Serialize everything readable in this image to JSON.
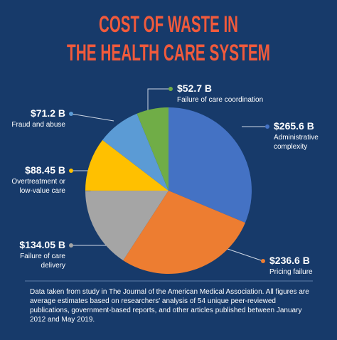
{
  "chart_data": {
    "type": "pie",
    "title": [
      "COST OF WASTE IN",
      "THE HEALTH CARE SYSTEM"
    ],
    "categories": [
      "Administrative\ncomplexity",
      "Pricing failure",
      "Failure of care\ndelivery",
      "Overtreatment or\nlow-value care",
      "Fraud and abuse",
      "Failure of care coordination"
    ],
    "values": [
      265.6,
      236.6,
      134.05,
      88.45,
      71.2,
      52.7
    ],
    "value_labels": [
      "$265.6 B",
      "$236.6 B",
      "$134.05 B",
      "$88.45 B",
      "$71.2 B",
      "$52.7 B"
    ],
    "colors": [
      "#4472c4",
      "#ed7d31",
      "#a5a5a5",
      "#ffc000",
      "#5b9bd5",
      "#70ad47"
    ],
    "note": "Data taken from study in The Journal of the American Medical Association. All figures are average estimates based on researchers' analysis of 54 unique peer-reviewed publications, government-based reports, and other articles published between January 2012 and May 2019."
  }
}
